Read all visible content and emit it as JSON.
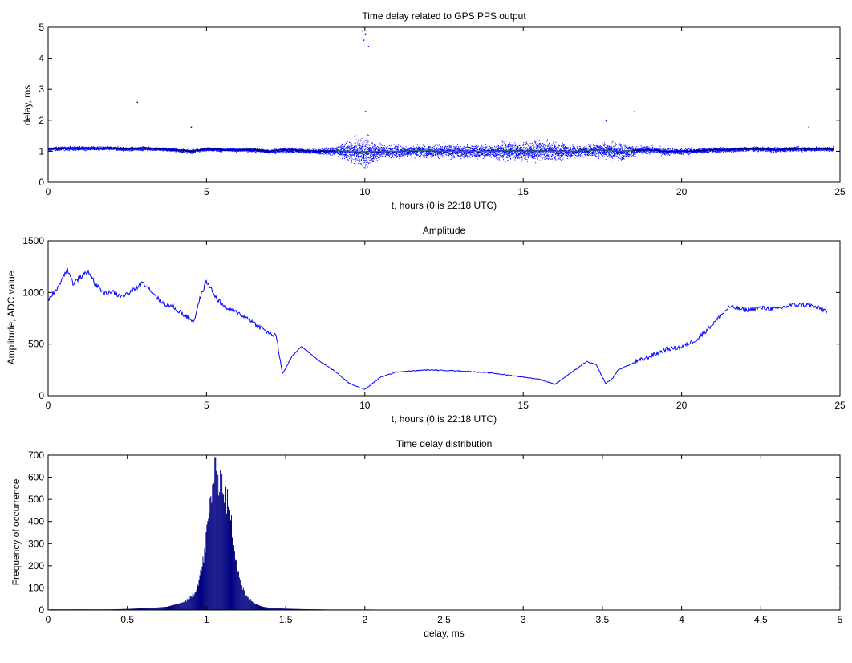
{
  "chart_data": [
    {
      "type": "scatter",
      "title": "Time delay related to GPS PPS output",
      "xlabel": "t, hours (0 is 22:18 UTC)",
      "ylabel": "delay, ms",
      "xlim": [
        0,
        25
      ],
      "ylim": [
        0,
        5
      ],
      "xticks": [
        "0",
        "5",
        "10",
        "15",
        "20",
        "25"
      ],
      "yticks": [
        "0",
        "1",
        "2",
        "3",
        "4",
        "5"
      ],
      "grid": false,
      "colors": {
        "points": "#0000ff",
        "outline": "#00008b",
        "mean": "#3cb371"
      },
      "series": [
        {
          "x": [
            0,
            0.5,
            1,
            1.5,
            2,
            2.5,
            3,
            3.5,
            4,
            4.5,
            5,
            5.5,
            6,
            6.5,
            7,
            7.5,
            8,
            8.5,
            9,
            9.5,
            10,
            10.5,
            11,
            11.5,
            12,
            12.5,
            13,
            13.5,
            14,
            14.5,
            15,
            15.5,
            16,
            16.5,
            17,
            17.5,
            18,
            18.5,
            19,
            19.5,
            20,
            20.5,
            21,
            21.5,
            22,
            22.5,
            23,
            23.5,
            24,
            24.5
          ],
          "y": [
            1.08,
            1.1,
            1.1,
            1.1,
            1.1,
            1.08,
            1.1,
            1.08,
            1.05,
            1.0,
            1.08,
            1.05,
            1.05,
            1.05,
            1.0,
            1.05,
            1.02,
            1.0,
            1.02,
            1.0,
            0.98,
            1.0,
            1.0,
            1.02,
            1.02,
            1.0,
            1.0,
            1.0,
            1.0,
            1.02,
            1.0,
            1.02,
            1.0,
            1.0,
            1.02,
            1.05,
            1.0,
            1.02,
            1.05,
            1.0,
            1.0,
            1.02,
            1.05,
            1.05,
            1.08,
            1.08,
            1.05,
            1.08,
            1.08,
            1.08
          ],
          "spread": [
            0.06,
            0.06,
            0.06,
            0.06,
            0.06,
            0.06,
            0.06,
            0.06,
            0.06,
            0.06,
            0.05,
            0.05,
            0.05,
            0.06,
            0.06,
            0.1,
            0.08,
            0.08,
            0.15,
            0.3,
            0.5,
            0.25,
            0.2,
            0.18,
            0.2,
            0.22,
            0.2,
            0.2,
            0.22,
            0.28,
            0.3,
            0.32,
            0.3,
            0.2,
            0.18,
            0.25,
            0.3,
            0.15,
            0.12,
            0.12,
            0.1,
            0.08,
            0.08,
            0.07,
            0.07,
            0.07,
            0.07,
            0.07,
            0.07,
            0.07
          ]
        }
      ],
      "outliers": [
        {
          "x": 9.9,
          "y": 4.9
        },
        {
          "x": 10.0,
          "y": 4.8
        },
        {
          "x": 9.95,
          "y": 4.6
        },
        {
          "x": 10.1,
          "y": 4.4
        },
        {
          "x": 2.8,
          "y": 2.6
        },
        {
          "x": 4.5,
          "y": 1.8
        },
        {
          "x": 18.5,
          "y": 2.3
        },
        {
          "x": 24.0,
          "y": 1.8
        },
        {
          "x": 10.0,
          "y": 2.3
        },
        {
          "x": 17.6,
          "y": 2.0
        }
      ]
    },
    {
      "type": "line",
      "title": "Amplitude",
      "xlabel": "t, hours (0 is 22:18 UTC)",
      "ylabel": "Amplitude, ADC value",
      "xlim": [
        0,
        25
      ],
      "ylim": [
        0,
        1500
      ],
      "xticks": [
        "0",
        "5",
        "10",
        "15",
        "20",
        "25"
      ],
      "yticks": [
        "0",
        "500",
        "1000",
        "1500"
      ],
      "grid": false,
      "colors": {
        "line": "#0000ff"
      },
      "series": [
        {
          "x": [
            0,
            0.3,
            0.6,
            0.8,
            1.0,
            1.3,
            1.5,
            1.8,
            2.0,
            2.3,
            2.6,
            3.0,
            3.3,
            3.6,
            4.0,
            4.3,
            4.6,
            4.8,
            5.0,
            5.3,
            5.6,
            6.0,
            6.3,
            6.6,
            7.0,
            7.2,
            7.4,
            7.7,
            8.0,
            8.5,
            9.0,
            9.5,
            10.0,
            10.5,
            11.0,
            12.0,
            13.0,
            14.0,
            15.0,
            15.5,
            16.0,
            16.5,
            17.0,
            17.3,
            17.6,
            17.8,
            18.0,
            18.5,
            19.0,
            19.5,
            20.0,
            20.5,
            21.0,
            21.5,
            22.0,
            22.5,
            23.0,
            23.5,
            24.0,
            24.6
          ],
          "y": [
            930,
            1050,
            1230,
            1080,
            1150,
            1200,
            1070,
            990,
            1010,
            960,
            1000,
            1100,
            1000,
            900,
            850,
            780,
            720,
            950,
            1110,
            950,
            850,
            800,
            750,
            680,
            600,
            580,
            210,
            380,
            480,
            350,
            250,
            120,
            60,
            180,
            230,
            250,
            240,
            220,
            180,
            160,
            110,
            220,
            330,
            300,
            120,
            160,
            250,
            320,
            380,
            450,
            470,
            550,
            700,
            860,
            830,
            850,
            840,
            880,
            880,
            820
          ]
        }
      ]
    },
    {
      "type": "bar",
      "title": "Time delay distribution",
      "xlabel": "delay, ms",
      "ylabel": "Frequency of occurrence",
      "xlim": [
        0,
        5
      ],
      "ylim": [
        0,
        700
      ],
      "xticks": [
        "0",
        "0.5",
        "1",
        "1.5",
        "2",
        "2.5",
        "3",
        "3.5",
        "4",
        "4.5",
        "5"
      ],
      "yticks": [
        "0",
        "100",
        "200",
        "300",
        "400",
        "500",
        "600",
        "700"
      ],
      "grid": false,
      "colors": {
        "bars": "#000080"
      },
      "series": [
        {
          "x": [
            0.05,
            0.2,
            0.4,
            0.5,
            0.6,
            0.7,
            0.75,
            0.8,
            0.85,
            0.88,
            0.9,
            0.93,
            0.95,
            0.98,
            1.0,
            1.02,
            1.04,
            1.06,
            1.08,
            1.1,
            1.12,
            1.14,
            1.16,
            1.18,
            1.2,
            1.22,
            1.25,
            1.3,
            1.35,
            1.4,
            1.5,
            1.6,
            1.7,
            1.8,
            2.0
          ],
          "values": [
            3,
            3,
            3,
            5,
            8,
            12,
            15,
            25,
            35,
            45,
            60,
            90,
            140,
            230,
            350,
            470,
            600,
            605,
            600,
            560,
            520,
            440,
            360,
            260,
            170,
            110,
            60,
            30,
            15,
            10,
            6,
            4,
            3,
            2,
            2
          ]
        }
      ]
    }
  ]
}
